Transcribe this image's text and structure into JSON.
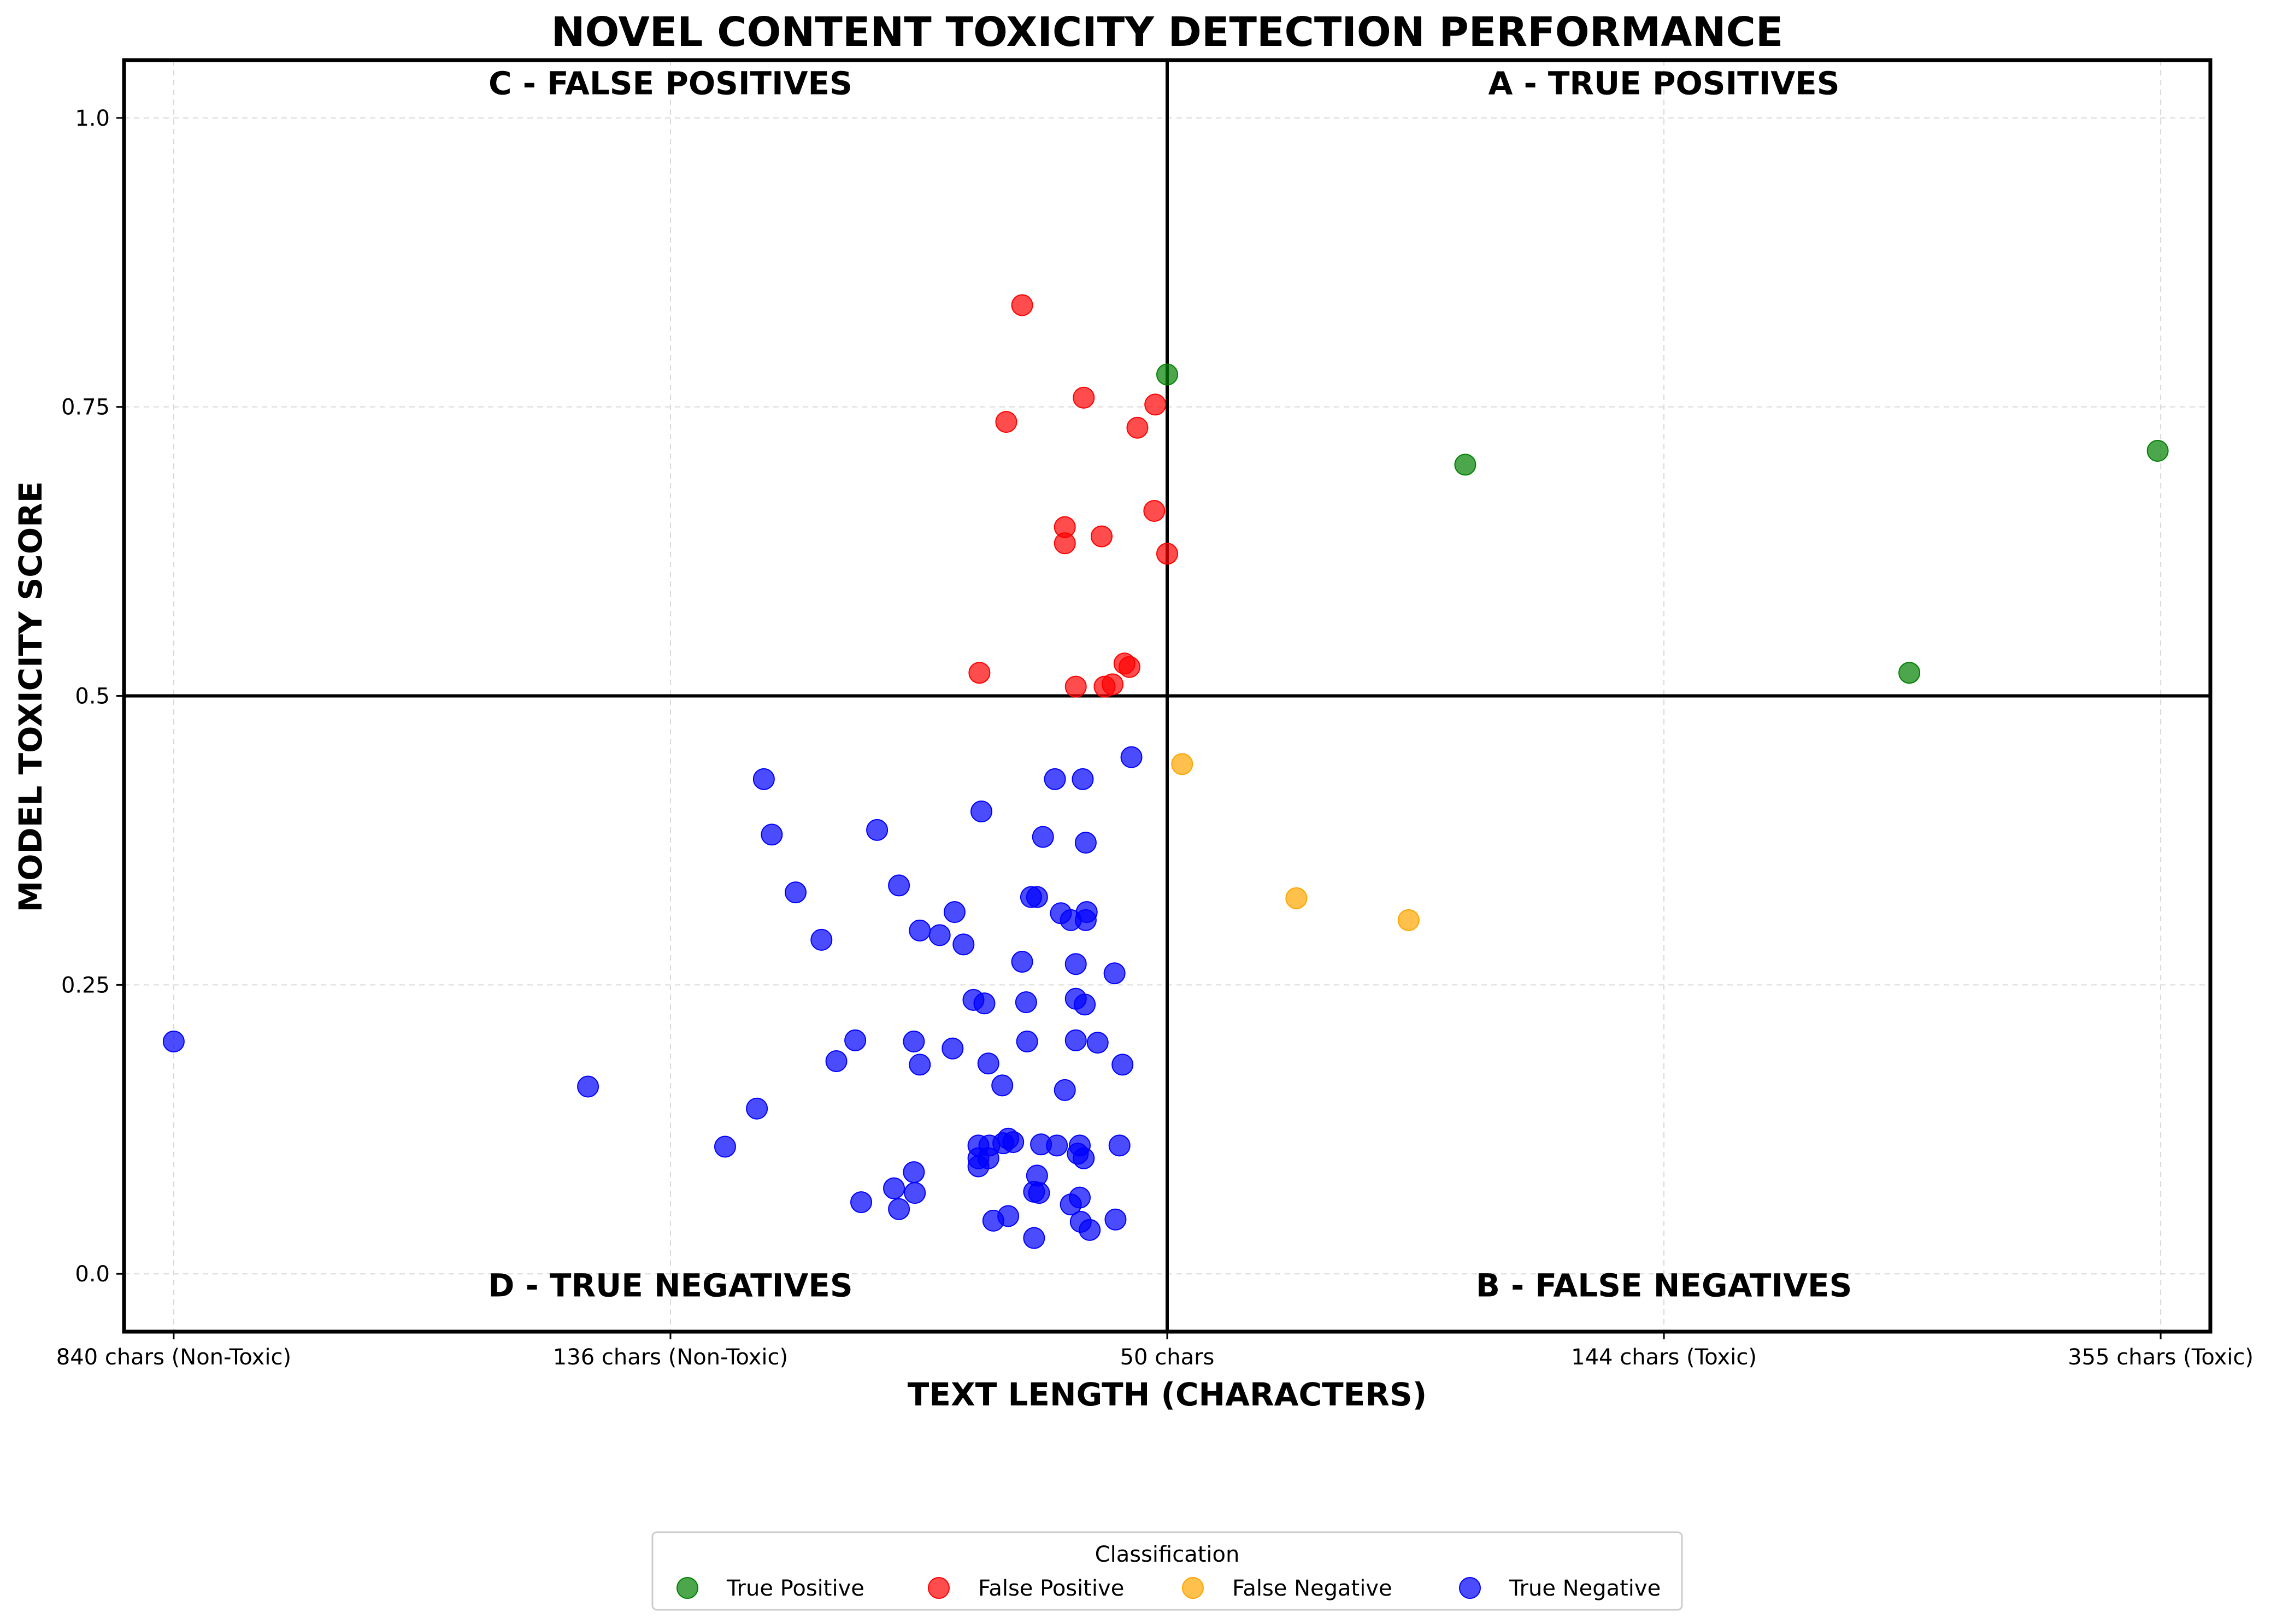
{
  "chart_data": {
    "type": "scatter",
    "title": "NOVEL CONTENT TOXICITY DETECTION PERFORMANCE",
    "xlabel": "TEXT LENGTH (CHARACTERS)",
    "ylabel": "MODEL TOXICITY SCORE",
    "xlim": [
      -1.05,
      1.05
    ],
    "ylim": [
      -0.05,
      1.05
    ],
    "x_threshold": 0,
    "y_threshold": 0.5,
    "x_ticks": [
      {
        "value": -1.0,
        "label": "840 chars (Non-Toxic)"
      },
      {
        "value": -0.5,
        "label": "136 chars (Non-Toxic)"
      },
      {
        "value": 0.0,
        "label": "50 chars"
      },
      {
        "value": 0.5,
        "label": "144 chars (Toxic)"
      },
      {
        "value": 1.0,
        "label": "355 chars (Toxic)"
      }
    ],
    "y_ticks": [
      {
        "value": 0.0,
        "label": "0.0"
      },
      {
        "value": 0.25,
        "label": "0.25"
      },
      {
        "value": 0.5,
        "label": "0.5"
      },
      {
        "value": 0.75,
        "label": "0.75"
      },
      {
        "value": 1.0,
        "label": "1.0"
      }
    ],
    "grid": true,
    "quadrant_labels": [
      {
        "text": "C - FALSE POSITIVES",
        "x": -0.5,
        "y": 1.03
      },
      {
        "text": "A - TRUE POSITIVES",
        "x": 0.5,
        "y": 1.03
      },
      {
        "text": "D - TRUE NEGATIVES",
        "x": -0.5,
        "y": -0.01
      },
      {
        "text": "B - FALSE NEGATIVES",
        "x": 0.5,
        "y": -0.01
      }
    ],
    "legend": {
      "title": "Classification",
      "placement": "bottom-center"
    },
    "series": [
      {
        "name": "True Positive",
        "color": "#008000",
        "points": [
          [
            0.0,
            0.778
          ],
          [
            0.3,
            0.7
          ],
          [
            0.747,
            0.52
          ],
          [
            0.997,
            0.712
          ]
        ]
      },
      {
        "name": "False Positive",
        "color": "#ff0000",
        "points": [
          [
            -0.146,
            0.838
          ],
          [
            -0.162,
            0.737
          ],
          [
            -0.084,
            0.758
          ],
          [
            -0.012,
            0.752
          ],
          [
            -0.03,
            0.732
          ],
          [
            -0.013,
            0.66
          ],
          [
            -0.103,
            0.646
          ],
          [
            -0.103,
            0.632
          ],
          [
            -0.066,
            0.638
          ],
          [
            0.0,
            0.623
          ],
          [
            -0.189,
            0.52
          ],
          [
            -0.092,
            0.508
          ],
          [
            -0.063,
            0.508
          ],
          [
            -0.055,
            0.51
          ],
          [
            -0.038,
            0.525
          ],
          [
            -0.043,
            0.528
          ]
        ]
      },
      {
        "name": "False Negative",
        "color": "#ffa500",
        "points": [
          [
            0.015,
            0.441
          ],
          [
            0.13,
            0.325
          ],
          [
            0.243,
            0.306
          ]
        ]
      },
      {
        "name": "True Negative",
        "color": "#0000ff",
        "points": [
          [
            -0.036,
            0.447
          ],
          [
            -0.406,
            0.428
          ],
          [
            -0.113,
            0.428
          ],
          [
            -0.085,
            0.428
          ],
          [
            -0.187,
            0.4
          ],
          [
            -0.398,
            0.38
          ],
          [
            -0.292,
            0.384
          ],
          [
            -0.125,
            0.378
          ],
          [
            -0.082,
            0.373
          ],
          [
            -0.374,
            0.33
          ],
          [
            -0.27,
            0.336
          ],
          [
            -0.137,
            0.326
          ],
          [
            -0.131,
            0.326
          ],
          [
            -0.107,
            0.312
          ],
          [
            -0.081,
            0.313
          ],
          [
            -0.214,
            0.313
          ],
          [
            -0.097,
            0.306
          ],
          [
            -0.082,
            0.306
          ],
          [
            -0.348,
            0.289
          ],
          [
            -0.249,
            0.297
          ],
          [
            -0.229,
            0.293
          ],
          [
            -0.205,
            0.285
          ],
          [
            -0.146,
            0.27
          ],
          [
            -0.092,
            0.268
          ],
          [
            -0.053,
            0.26
          ],
          [
            -0.195,
            0.237
          ],
          [
            -0.184,
            0.234
          ],
          [
            -0.142,
            0.235
          ],
          [
            -0.092,
            0.238
          ],
          [
            -0.083,
            0.233
          ],
          [
            -1.0,
            0.201
          ],
          [
            -0.314,
            0.202
          ],
          [
            -0.255,
            0.201
          ],
          [
            -0.216,
            0.195
          ],
          [
            -0.141,
            0.201
          ],
          [
            -0.092,
            0.202
          ],
          [
            -0.07,
            0.2
          ],
          [
            -0.333,
            0.184
          ],
          [
            -0.249,
            0.181
          ],
          [
            -0.18,
            0.182
          ],
          [
            -0.045,
            0.181
          ],
          [
            -0.583,
            0.162
          ],
          [
            -0.166,
            0.163
          ],
          [
            -0.103,
            0.159
          ],
          [
            -0.413,
            0.143
          ],
          [
            -0.445,
            0.11
          ],
          [
            -0.19,
            0.111
          ],
          [
            -0.179,
            0.111
          ],
          [
            -0.165,
            0.113
          ],
          [
            -0.16,
            0.117
          ],
          [
            -0.155,
            0.114
          ],
          [
            -0.127,
            0.112
          ],
          [
            -0.111,
            0.111
          ],
          [
            -0.088,
            0.111
          ],
          [
            -0.048,
            0.111
          ],
          [
            -0.19,
            0.1
          ],
          [
            -0.18,
            0.1
          ],
          [
            -0.09,
            0.104
          ],
          [
            -0.084,
            0.1
          ],
          [
            -0.19,
            0.093
          ],
          [
            -0.255,
            0.088
          ],
          [
            -0.131,
            0.085
          ],
          [
            -0.275,
            0.074
          ],
          [
            -0.254,
            0.07
          ],
          [
            -0.134,
            0.071
          ],
          [
            -0.129,
            0.07
          ],
          [
            -0.088,
            0.066
          ],
          [
            -0.308,
            0.062
          ],
          [
            -0.097,
            0.06
          ],
          [
            -0.27,
            0.056
          ],
          [
            -0.16,
            0.05
          ],
          [
            -0.175,
            0.046
          ],
          [
            -0.052,
            0.047
          ],
          [
            -0.087,
            0.045
          ],
          [
            -0.078,
            0.038
          ],
          [
            -0.134,
            0.031
          ]
        ]
      }
    ]
  }
}
